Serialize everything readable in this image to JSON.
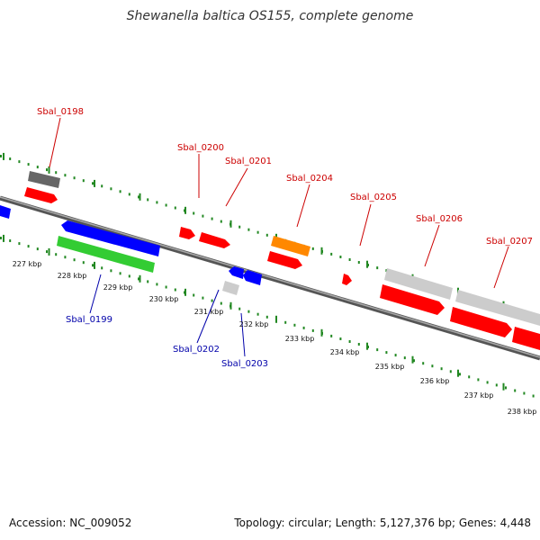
{
  "title": "Shewanella baltica OS155, complete genome",
  "footer": {
    "accession": "Accession: NC_009052",
    "summary": "Topology: circular; Length: 5,127,376 bp; Genes: 4,448"
  },
  "colors": {
    "plus_label": "#cc0000",
    "minus_label": "#0000aa",
    "red": "#ff0000",
    "blue": "#0000ff",
    "green": "#33cc33",
    "orange": "#ff8800",
    "gray": "#cccccc",
    "darkgray": "#666666",
    "backbone": "#777777",
    "ticks": "#228822"
  },
  "kbp_ticks": [
    "227 kbp",
    "228 kbp",
    "229 kbp",
    "230 kbp",
    "231 kbp",
    "232 kbp",
    "233 kbp",
    "234 kbp",
    "235 kbp",
    "236 kbp",
    "237 kbp",
    "238 kbp"
  ],
  "genes": [
    {
      "label": "Sbal_0198",
      "strand": "plus"
    },
    {
      "label": "Sbal_0199",
      "strand": "minus"
    },
    {
      "label": "Sbal_0200",
      "strand": "plus"
    },
    {
      "label": "Sbal_0201",
      "strand": "plus"
    },
    {
      "label": "Sbal_0202",
      "strand": "minus"
    },
    {
      "label": "Sbal_0203",
      "strand": "minus"
    },
    {
      "label": "Sbal_0204",
      "strand": "plus"
    },
    {
      "label": "Sbal_0205",
      "strand": "plus"
    },
    {
      "label": "Sbal_0206",
      "strand": "plus"
    },
    {
      "label": "Sbal_0207",
      "strand": "plus"
    }
  ]
}
